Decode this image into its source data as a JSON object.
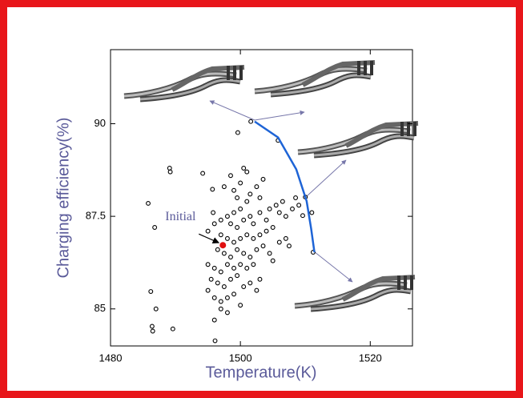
{
  "chart_data": {
    "type": "scatter",
    "x_label": "Temperature(K)",
    "y_label": "Charging efficiency(%)",
    "xlim": [
      1480,
      1526.5
    ],
    "ylim": [
      84,
      92
    ],
    "xticks": [
      1480,
      1500,
      1520
    ],
    "yticks": [
      85,
      87.5,
      90
    ],
    "series": [
      {
        "type": "scatter",
        "color": "#000000",
        "x": [
          1485.8,
          1486.8,
          1486.2,
          1487,
          1486.4,
          1486.5,
          1489.1,
          1489.2,
          1489.6,
          1494.2,
          1496,
          1496.1,
          1495.7,
          1495.8,
          1501.6,
          1505.8,
          1499.6,
          1510,
          1511.2,
          1509.6,
          1497.5,
          1498.5,
          1499,
          1500.5,
          1501,
          1500,
          1499.5,
          1501.5,
          1502.5,
          1503.5,
          1503,
          1501,
          1500,
          1499,
          1498,
          1497,
          1498.5,
          1499.5,
          1500.5,
          1501.5,
          1502,
          1503,
          1504,
          1504.5,
          1505.5,
          1506,
          1507,
          1506.5,
          1508,
          1505,
          1504,
          1503,
          1502,
          1501,
          1500,
          1499,
          1498,
          1497,
          1496.5,
          1497.5,
          1498.5,
          1499.5,
          1500.5,
          1501.5,
          1502.5,
          1503.5,
          1504.5,
          1505,
          1506,
          1507,
          1507.5,
          1502,
          1501,
          1500,
          1499,
          1498,
          1497,
          1496,
          1495,
          1495.5,
          1496.5,
          1497.5,
          1498.5,
          1499.5,
          1500.5,
          1501.5,
          1503,
          1502.5,
          1499,
          1498,
          1497,
          1496,
          1495,
          1500,
          1498,
          1497,
          1508.5,
          1509,
          1511,
          1495,
          1496
        ],
        "values": [
          87.85,
          87.2,
          85.47,
          85,
          84.53,
          84.4,
          88.8,
          88.7,
          84.46,
          88.66,
          84.7,
          84.14,
          88.23,
          87.6,
          90.06,
          89.55,
          89.76,
          88.02,
          86.53,
          87.52,
          88.3,
          88.6,
          88.2,
          88.8,
          88.7,
          88.4,
          88.0,
          88.1,
          88.3,
          88.5,
          88.0,
          87.9,
          87.7,
          87.6,
          87.5,
          87.4,
          87.3,
          87.2,
          87.4,
          87.5,
          87.3,
          87.6,
          87.4,
          87.7,
          87.8,
          87.6,
          87.5,
          87.9,
          87.7,
          87.2,
          87.1,
          87.0,
          86.9,
          87.0,
          86.9,
          86.8,
          86.9,
          87.0,
          86.6,
          86.5,
          86.4,
          86.6,
          86.5,
          86.4,
          86.6,
          86.7,
          86.5,
          86.3,
          86.8,
          86.9,
          86.7,
          86.2,
          86.1,
          86.2,
          86.1,
          86.2,
          86.0,
          86.1,
          86.2,
          85.8,
          85.7,
          85.6,
          85.8,
          85.9,
          85.6,
          85.7,
          85.8,
          85.5,
          85.4,
          85.3,
          85.2,
          85.3,
          85.5,
          85.1,
          84.9,
          85.0,
          88.0,
          87.8,
          87.6,
          87.1,
          87.3
        ]
      },
      {
        "type": "line",
        "color": "#1e64d6",
        "x": [
          1502.2,
          1505.8,
          1508.6,
          1510.2,
          1510.9,
          1511.4
        ],
        "values": [
          90.06,
          89.63,
          88.77,
          87.91,
          87.16,
          86.53
        ]
      }
    ],
    "annotation": {
      "text": "Initial",
      "x": 1497.3,
      "y": 86.72,
      "color": "#e01010"
    }
  }
}
